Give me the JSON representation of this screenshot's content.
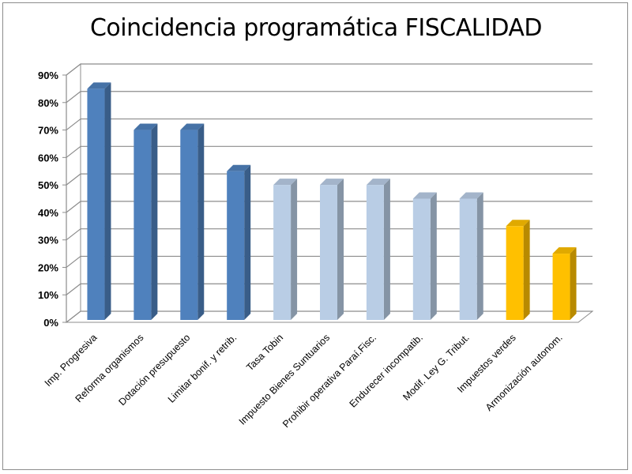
{
  "chart_data": {
    "type": "bar",
    "title": "Coincidencia programática FISCALIDAD",
    "categories": [
      "Imp. Progresiva",
      "Reforma organismos",
      "Dotación presupuesto",
      "Limitar bonif. y retrib.",
      "Tasa Tobin",
      "Impuesto Bienes Suntuarios",
      "Prohibir operativa Paraí.Fisc.",
      "Endurecer incompatib.",
      "Modif. Ley G. Tribut.",
      "Impuestos verdes",
      "Armonización autonom."
    ],
    "values": [
      85,
      70,
      70,
      55,
      50,
      50,
      50,
      45,
      45,
      35,
      25
    ],
    "bar_colors": [
      "#4f81bd",
      "#4f81bd",
      "#4f81bd",
      "#4f81bd",
      "#b9cde5",
      "#b9cde5",
      "#b9cde5",
      "#b9cde5",
      "#b9cde5",
      "#ffc000",
      "#ffc000"
    ],
    "ylim": [
      0,
      90
    ],
    "yticks": [
      "0%",
      "10%",
      "20%",
      "30%",
      "40%",
      "50%",
      "60%",
      "70%",
      "80%",
      "90%"
    ],
    "xlabel": "",
    "ylabel": "",
    "grid": true,
    "legend": "none"
  }
}
